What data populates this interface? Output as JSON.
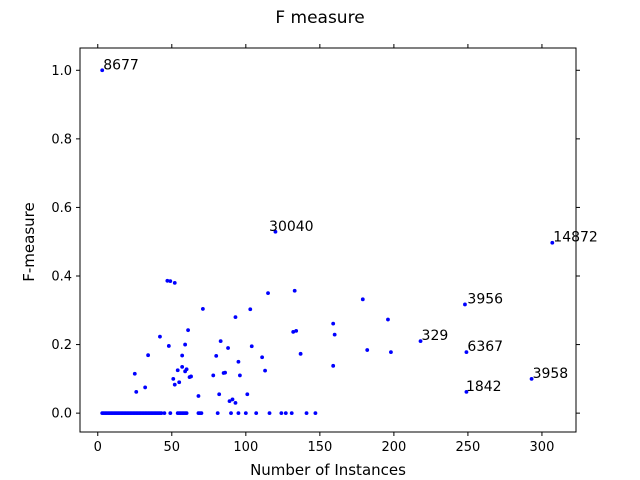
{
  "chart_data": {
    "type": "scatter",
    "title": "F measure",
    "xlabel": "Number of Instances",
    "ylabel": "F-measure",
    "xlim": [
      -12,
      323
    ],
    "ylim": [
      -0.055,
      1.065
    ],
    "xticks": [
      0,
      50,
      100,
      150,
      200,
      250,
      300
    ],
    "yticks": [
      0.0,
      0.2,
      0.4,
      0.6,
      0.8,
      1.0
    ],
    "ytick_labels": [
      "0.0",
      "0.2",
      "0.4",
      "0.6",
      "0.8",
      "1.0"
    ],
    "grid": false,
    "point_color": "#0000ff",
    "x": [
      3,
      4,
      5,
      6,
      7,
      8,
      9,
      10,
      11,
      12,
      13,
      14,
      15,
      16,
      17,
      18,
      19,
      20,
      21,
      22,
      23,
      24,
      25,
      26,
      27,
      28,
      29,
      30,
      31,
      32,
      33,
      34,
      35,
      36,
      37,
      38,
      39,
      40,
      41,
      42,
      43,
      45,
      49,
      54,
      55,
      56,
      57,
      58,
      59,
      60,
      68,
      69,
      70,
      81,
      90,
      95,
      100,
      107,
      116,
      124,
      127,
      131,
      141,
      147,
      3,
      47,
      52,
      115,
      248,
      307,
      49,
      71,
      93,
      103,
      120,
      133,
      42,
      48,
      59,
      134,
      132,
      160,
      159,
      179,
      196,
      88,
      95,
      63,
      198,
      182,
      159,
      137,
      34,
      57,
      25,
      61,
      83,
      104,
      96,
      85,
      26,
      32,
      52,
      54,
      55,
      57,
      59,
      60,
      62,
      51,
      86,
      101,
      111,
      78,
      113,
      91,
      80,
      218,
      249,
      293,
      249,
      68,
      82,
      93,
      89
    ],
    "y": [
      0,
      0,
      0,
      0,
      0,
      0,
      0,
      0,
      0,
      0,
      0,
      0,
      0,
      0,
      0,
      0,
      0,
      0,
      0,
      0,
      0,
      0,
      0,
      0,
      0,
      0,
      0,
      0,
      0,
      0,
      0,
      0,
      0,
      0,
      0,
      0,
      0,
      0,
      0,
      0,
      0,
      0,
      0,
      0,
      0,
      0,
      0,
      0,
      0,
      0,
      0,
      0,
      0,
      0,
      0,
      0,
      0,
      0,
      0,
      0,
      0,
      0,
      0,
      0,
      1.0,
      0.386,
      0.38,
      0.35,
      0.317,
      0.497,
      0.385,
      0.304,
      0.28,
      0.303,
      0.529,
      0.357,
      0.223,
      0.196,
      0.2,
      0.24,
      0.237,
      0.229,
      0.261,
      0.332,
      0.273,
      0.19,
      0.15,
      0.107,
      0.178,
      0.184,
      0.138,
      0.173,
      0.169,
      0.168,
      0.115,
      0.242,
      0.21,
      0.195,
      0.11,
      0.117,
      0.062,
      0.075,
      0.083,
      0.125,
      0.09,
      0.135,
      0.122,
      0.128,
      0.105,
      0.1,
      0.118,
      0.055,
      0.163,
      0.11,
      0.124,
      0.04,
      0.167,
      0.21,
      0.178,
      0.1,
      0.062,
      0.05,
      0.055,
      0.03,
      0.035
    ],
    "annotations": [
      {
        "label": "8677",
        "x": 3,
        "y": 1.0
      },
      {
        "label": "30040",
        "x": 115,
        "y": 0.529
      },
      {
        "label": "14872",
        "x": 307,
        "y": 0.497
      },
      {
        "label": "3956",
        "x": 249,
        "y": 0.317
      },
      {
        "label": "329",
        "x": 218,
        "y": 0.21
      },
      {
        "label": "6367",
        "x": 249,
        "y": 0.178
      },
      {
        "label": "3958",
        "x": 293,
        "y": 0.1
      },
      {
        "label": "1842",
        "x": 248,
        "y": 0.062
      }
    ]
  }
}
